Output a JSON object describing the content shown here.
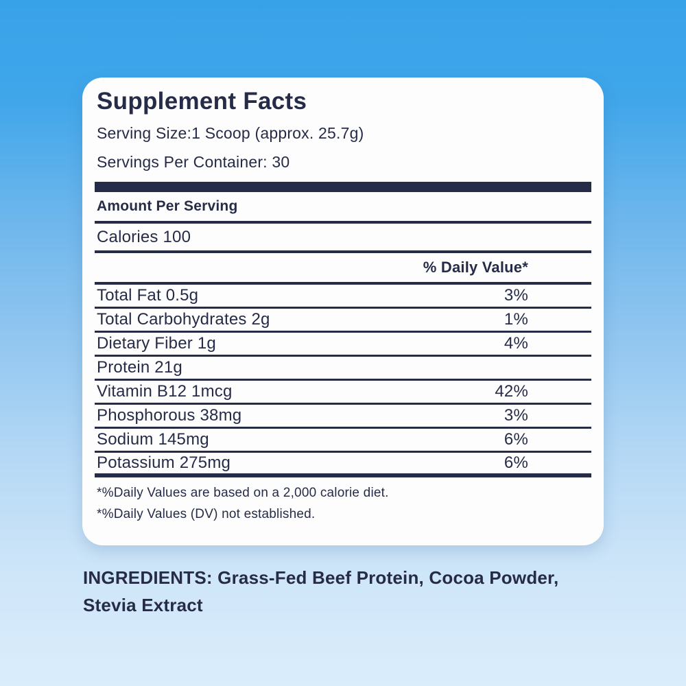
{
  "panel": {
    "title": "Supplement Facts",
    "serving_size": "Serving Size:1 Scoop (approx. 25.7g)",
    "servings_per_container": "Servings Per Container: 30",
    "amount_per_serving": "Amount Per Serving",
    "calories": "Calories 100",
    "daily_value_header": "% Daily Value*",
    "rows": [
      {
        "name": "Total Fat 0.5g",
        "dv": "3%"
      },
      {
        "name": "Total Carbohydrates 2g",
        "dv": "1%"
      },
      {
        "name": "Dietary Fiber 1g",
        "dv": "4%"
      },
      {
        "name": "Protein 21g",
        "dv": ""
      },
      {
        "name": "Vitamin B12  1mcg",
        "dv": "42%"
      },
      {
        "name": "Phosphorous 38mg",
        "dv": "3%"
      },
      {
        "name": "Sodium 145mg",
        "dv": "6%"
      },
      {
        "name": "Potassium 275mg",
        "dv": "6%"
      }
    ],
    "footnotes": [
      "*%Daily Values are based on a 2,000 calorie diet.",
      "*%Daily Values (DV) not established."
    ]
  },
  "ingredients": {
    "text": "INGREDIENTS: Grass-Fed Beef Protein, Cocoa Powder, Stevia Extract"
  },
  "colors": {
    "text_navy": "#262b47",
    "card_background": "#fdfdfe",
    "background_top": "#38a2e9",
    "background_bottom": "#daedfb"
  }
}
